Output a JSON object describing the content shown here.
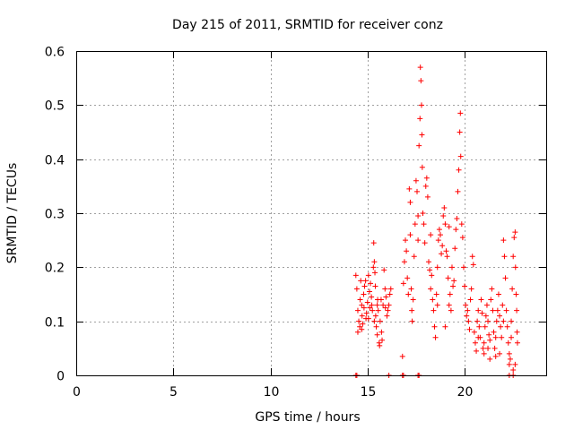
{
  "chart_data": {
    "type": "scatter",
    "title": "Day 215 of 2011, SRMTID for receiver conz",
    "xlabel": "GPS time / hours",
    "ylabel": "SRMTID / TECUs",
    "xlim": [
      0,
      24.2
    ],
    "ylim": [
      0,
      0.6
    ],
    "x_ticks": [
      0,
      5,
      10,
      15,
      20
    ],
    "x_tick_labels": [
      "0",
      "5",
      "10",
      "15",
      "20"
    ],
    "y_ticks": [
      0,
      0.1,
      0.2,
      0.3,
      0.4,
      0.5,
      0.6
    ],
    "y_tick_labels": [
      "0",
      "0.1",
      "0.2",
      "0.3",
      "0.4",
      "0.5",
      "0.6"
    ],
    "grid": true,
    "marker": "+",
    "series": [
      {
        "name": "SRMTID",
        "color": "#ff0000",
        "points": [
          [
            14.4,
            0.185
          ],
          [
            14.45,
            0.16
          ],
          [
            14.5,
            0.12
          ],
          [
            14.55,
            0.1
          ],
          [
            14.6,
            0.09
          ],
          [
            14.62,
            0.14
          ],
          [
            14.65,
            0.175
          ],
          [
            14.7,
            0.13
          ],
          [
            14.72,
            0.11
          ],
          [
            14.75,
            0.095
          ],
          [
            14.8,
            0.15
          ],
          [
            14.82,
            0.125
          ],
          [
            14.85,
            0.165
          ],
          [
            14.9,
            0.175
          ],
          [
            14.92,
            0.105
          ],
          [
            14.95,
            0.115
          ],
          [
            15.0,
            0.135
          ],
          [
            15.05,
            0.185
          ],
          [
            15.1,
            0.155
          ],
          [
            15.12,
            0.125
          ],
          [
            15.15,
            0.17
          ],
          [
            15.2,
            0.145
          ],
          [
            15.22,
            0.13
          ],
          [
            15.25,
            0.12
          ],
          [
            15.3,
            0.2
          ],
          [
            15.32,
            0.245
          ],
          [
            15.35,
            0.21
          ],
          [
            15.38,
            0.19
          ],
          [
            15.4,
            0.165
          ],
          [
            15.42,
            0.11
          ],
          [
            15.45,
            0.09
          ],
          [
            15.5,
            0.075
          ],
          [
            15.52,
            0.14
          ],
          [
            15.55,
            0.12
          ],
          [
            15.6,
            0.06
          ],
          [
            15.62,
            0.055
          ],
          [
            15.65,
            0.1
          ],
          [
            15.7,
            0.14
          ],
          [
            15.72,
            0.08
          ],
          [
            15.75,
            0.065
          ],
          [
            15.8,
            0.13
          ],
          [
            15.85,
            0.195
          ],
          [
            15.9,
            0.16
          ],
          [
            15.92,
            0.125
          ],
          [
            15.95,
            0.145
          ],
          [
            16.0,
            0.11
          ],
          [
            16.05,
            0.12
          ],
          [
            16.1,
            0.13
          ],
          [
            16.15,
            0.15
          ],
          [
            16.2,
            0.16
          ],
          [
            14.5,
            0.08
          ],
          [
            14.7,
            0.085
          ],
          [
            15.05,
            0.105
          ],
          [
            15.35,
            0.1
          ],
          [
            15.5,
            0.13
          ],
          [
            16.8,
            0.035
          ],
          [
            16.85,
            0.17
          ],
          [
            16.9,
            0.21
          ],
          [
            16.95,
            0.25
          ],
          [
            17.0,
            0.23
          ],
          [
            17.05,
            0.18
          ],
          [
            17.1,
            0.15
          ],
          [
            17.15,
            0.345
          ],
          [
            17.2,
            0.32
          ],
          [
            17.25,
            0.16
          ],
          [
            17.28,
            0.12
          ],
          [
            17.3,
            0.1
          ],
          [
            17.35,
            0.14
          ],
          [
            17.4,
            0.22
          ],
          [
            17.45,
            0.28
          ],
          [
            17.5,
            0.36
          ],
          [
            17.55,
            0.34
          ],
          [
            17.6,
            0.295
          ],
          [
            17.65,
            0.425
          ],
          [
            17.7,
            0.475
          ],
          [
            17.72,
            0.57
          ],
          [
            17.75,
            0.545
          ],
          [
            17.78,
            0.5
          ],
          [
            17.8,
            0.445
          ],
          [
            17.82,
            0.385
          ],
          [
            17.85,
            0.3
          ],
          [
            17.9,
            0.28
          ],
          [
            17.95,
            0.245
          ],
          [
            18.0,
            0.35
          ],
          [
            18.05,
            0.365
          ],
          [
            18.1,
            0.33
          ],
          [
            18.15,
            0.21
          ],
          [
            18.2,
            0.195
          ],
          [
            18.25,
            0.16
          ],
          [
            18.3,
            0.185
          ],
          [
            18.35,
            0.14
          ],
          [
            18.4,
            0.12
          ],
          [
            18.45,
            0.09
          ],
          [
            18.5,
            0.07
          ],
          [
            18.55,
            0.15
          ],
          [
            18.6,
            0.2
          ],
          [
            18.65,
            0.25
          ],
          [
            18.7,
            0.27
          ],
          [
            18.75,
            0.26
          ],
          [
            18.8,
            0.225
          ],
          [
            18.85,
            0.24
          ],
          [
            18.9,
            0.295
          ],
          [
            18.95,
            0.31
          ],
          [
            19.0,
            0.28
          ],
          [
            19.05,
            0.23
          ],
          [
            19.1,
            0.22
          ],
          [
            19.15,
            0.18
          ],
          [
            19.2,
            0.13
          ],
          [
            19.25,
            0.15
          ],
          [
            19.3,
            0.12
          ],
          [
            19.35,
            0.2
          ],
          [
            19.4,
            0.165
          ],
          [
            19.45,
            0.175
          ],
          [
            19.5,
            0.235
          ],
          [
            19.55,
            0.27
          ],
          [
            19.6,
            0.29
          ],
          [
            19.65,
            0.34
          ],
          [
            19.7,
            0.38
          ],
          [
            19.75,
            0.45
          ],
          [
            19.78,
            0.485
          ],
          [
            19.8,
            0.405
          ],
          [
            19.85,
            0.28
          ],
          [
            19.9,
            0.255
          ],
          [
            19.95,
            0.2
          ],
          [
            20.0,
            0.165
          ],
          [
            20.05,
            0.13
          ],
          [
            20.1,
            0.11
          ],
          [
            20.15,
            0.12
          ],
          [
            20.2,
            0.1
          ],
          [
            20.25,
            0.085
          ],
          [
            20.3,
            0.14
          ],
          [
            20.35,
            0.16
          ],
          [
            20.4,
            0.22
          ],
          [
            20.45,
            0.205
          ],
          [
            17.2,
            0.26
          ],
          [
            17.6,
            0.25
          ],
          [
            18.25,
            0.26
          ],
          [
            18.6,
            0.13
          ],
          [
            19.0,
            0.09
          ],
          [
            19.2,
            0.275
          ],
          [
            20.5,
            0.08
          ],
          [
            20.55,
            0.06
          ],
          [
            20.6,
            0.045
          ],
          [
            20.65,
            0.1
          ],
          [
            20.7,
            0.12
          ],
          [
            20.75,
            0.09
          ],
          [
            20.8,
            0.07
          ],
          [
            20.85,
            0.14
          ],
          [
            20.9,
            0.115
          ],
          [
            20.95,
            0.05
          ],
          [
            21.0,
            0.04
          ],
          [
            21.05,
            0.09
          ],
          [
            21.1,
            0.11
          ],
          [
            21.15,
            0.13
          ],
          [
            21.2,
            0.1
          ],
          [
            21.25,
            0.075
          ],
          [
            21.3,
            0.065
          ],
          [
            21.35,
            0.14
          ],
          [
            21.4,
            0.16
          ],
          [
            21.45,
            0.12
          ],
          [
            21.5,
            0.08
          ],
          [
            21.55,
            0.05
          ],
          [
            21.6,
            0.035
          ],
          [
            21.65,
            0.1
          ],
          [
            21.7,
            0.12
          ],
          [
            21.75,
            0.15
          ],
          [
            21.8,
            0.11
          ],
          [
            21.85,
            0.09
          ],
          [
            21.9,
            0.07
          ],
          [
            21.95,
            0.13
          ],
          [
            22.0,
            0.25
          ],
          [
            22.05,
            0.22
          ],
          [
            22.1,
            0.18
          ],
          [
            22.15,
            0.12
          ],
          [
            22.2,
            0.09
          ],
          [
            22.25,
            0.06
          ],
          [
            22.3,
            0.04
          ],
          [
            22.35,
            0.03
          ],
          [
            22.4,
            0.1
          ],
          [
            22.45,
            0.16
          ],
          [
            22.5,
            0.22
          ],
          [
            22.55,
            0.255
          ],
          [
            22.6,
            0.265
          ],
          [
            22.62,
            0.2
          ],
          [
            22.65,
            0.15
          ],
          [
            22.68,
            0.12
          ],
          [
            22.7,
            0.08
          ],
          [
            22.72,
            0.06
          ],
          [
            21.0,
            0.06
          ],
          [
            21.3,
            0.03
          ],
          [
            21.8,
            0.04
          ],
          [
            22.3,
            0.02
          ],
          [
            22.5,
            0.01
          ],
          [
            22.6,
            0.02
          ],
          [
            20.7,
            0.07
          ],
          [
            21.2,
            0.05
          ],
          [
            21.6,
            0.07
          ],
          [
            22.0,
            0.1
          ],
          [
            22.4,
            0.07
          ],
          [
            14.4,
            0.0
          ],
          [
            14.45,
            0.0
          ],
          [
            16.1,
            0.0
          ],
          [
            16.8,
            0.0
          ],
          [
            16.85,
            0.0
          ],
          [
            17.6,
            0.0
          ],
          [
            17.65,
            0.0
          ],
          [
            22.3,
            0.0
          ],
          [
            22.5,
            0.0
          ]
        ]
      }
    ]
  }
}
